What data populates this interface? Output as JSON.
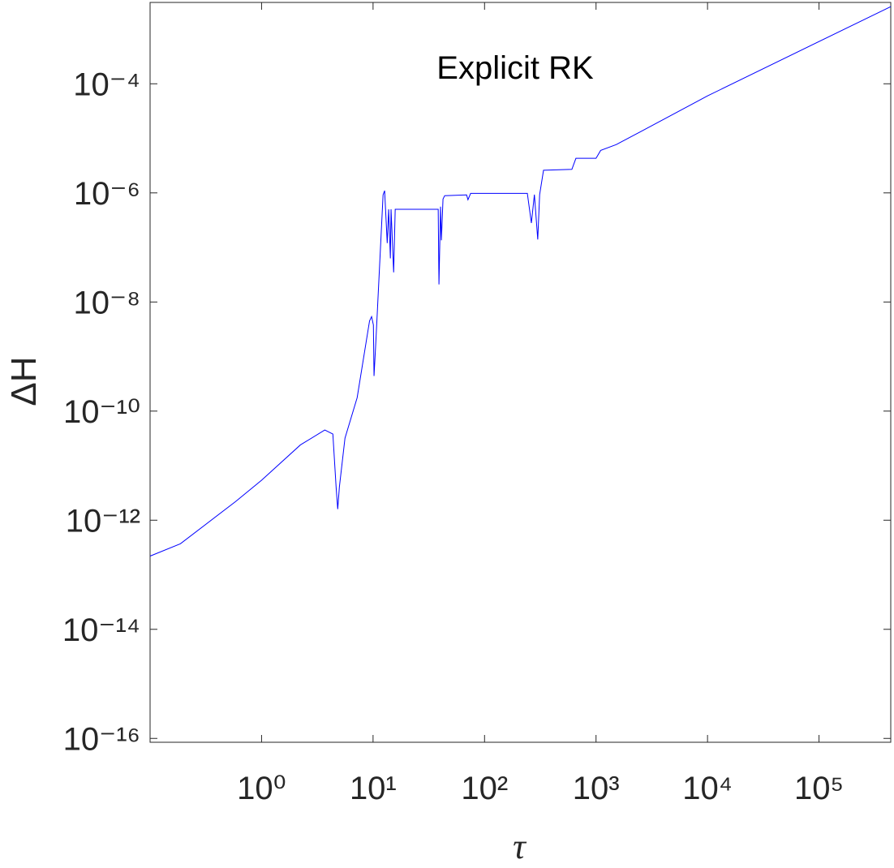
{
  "chart_data": {
    "type": "line",
    "title": "Explicit RK",
    "xlabel": "τ",
    "ylabel": "ΔH",
    "xscale": "log",
    "yscale": "log",
    "color": "#0000ff",
    "xlim": [
      0.1,
      440000
    ],
    "ylim": [
      8.5e-17,
      0.0031
    ],
    "xticks": [
      {
        "value": 1,
        "label": "10⁰"
      },
      {
        "value": 10,
        "label": "10¹"
      },
      {
        "value": 100,
        "label": "10²"
      },
      {
        "value": 1000,
        "label": "10³"
      },
      {
        "value": 10000,
        "label": "10⁴"
      },
      {
        "value": 100000,
        "label": "10⁵"
      }
    ],
    "yticks": [
      {
        "value": 1e-16,
        "label": "10⁻¹⁶"
      },
      {
        "value": 1e-14,
        "label": "10⁻¹⁴"
      },
      {
        "value": 1e-12,
        "label": "10⁻¹²"
      },
      {
        "value": 1e-10,
        "label": "10⁻¹⁰"
      },
      {
        "value": 1e-08,
        "label": "10⁻⁸"
      },
      {
        "value": 1e-06,
        "label": "10⁻⁶"
      },
      {
        "value": 0.0001,
        "label": "10⁻⁴"
      }
    ],
    "x": [
      0.1,
      0.187,
      0.585,
      1,
      2.23,
      3.69,
      4.36,
      4.66,
      4.82,
      4.99,
      5.6,
      7.2,
      9.3,
      9.7,
      10.07,
      10.2,
      10.6,
      12.3,
      12.7,
      13.4,
      13.8,
      14.3,
      14.5,
      15.3,
      15.8,
      38.4,
      39,
      40.3,
      41,
      42.4,
      43.9,
      69,
      71,
      75,
      242,
      263,
      280,
      300,
      312,
      338,
      607,
      660,
      1000,
      1100,
      1520,
      2520,
      10000,
      440000
    ],
    "values": [
      2.2e-13,
      3.7e-13,
      2.2e-12,
      5.4e-12,
      2.4e-11,
      4.5e-11,
      3.8e-11,
      4.1e-12,
      1.6e-12,
      4.1e-12,
      3.2e-11,
      1.76e-10,
      4.5e-09,
      5.4e-09,
      3.8e-09,
      4.4e-10,
      1.9e-09,
      9.2e-07,
      1.1e-06,
      1.2e-07,
      5e-07,
      6.3e-08,
      5e-07,
      3.5e-08,
      5e-07,
      5e-07,
      2.1e-08,
      5.6e-07,
      1.35e-07,
      7.7e-07,
      8.9e-07,
      9.2e-07,
      7.5e-07,
      9.8e-07,
      9.8e-07,
      2.8e-07,
      9.3e-07,
      1.4e-07,
      9.3e-07,
      2.6e-06,
      2.7e-06,
      4.3e-06,
      4.3e-06,
      6e-06,
      7.7e-06,
      1.33e-05,
      6e-05,
      0.0026
    ]
  }
}
